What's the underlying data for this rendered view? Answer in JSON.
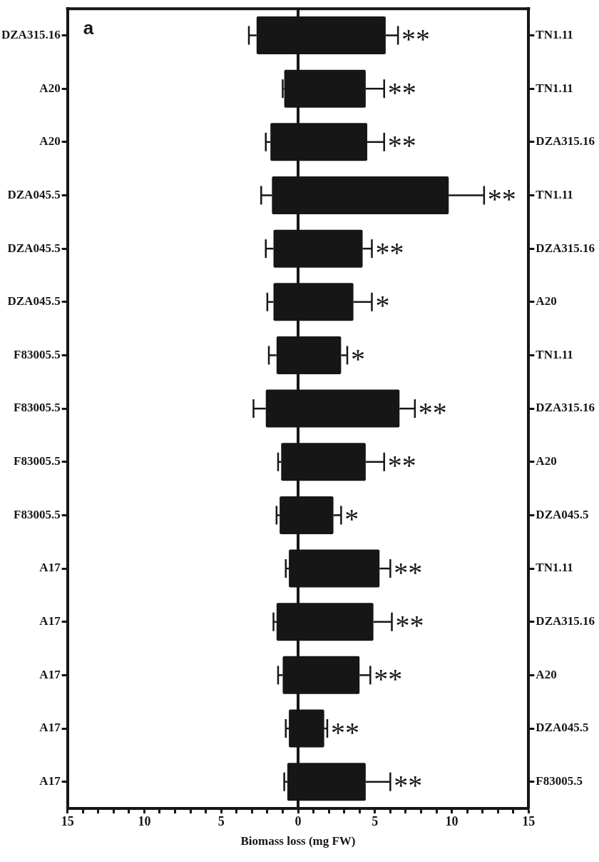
{
  "chart_data": {
    "type": "bar",
    "orientation": "horizontal",
    "stacked": true,
    "categories": [
      "DZA315.16",
      "A20",
      "A20",
      "DZA045.5",
      "DZA045.5",
      "DZA045.5",
      "F83005.5",
      "F83005.5",
      "F83005.5",
      "F83005.5",
      "A17",
      "A17",
      "A17",
      "A17",
      "A17"
    ],
    "y2_categories": [
      "TN1.11",
      "TN1.11",
      "DZA315.16",
      "TN1.11",
      "DZA315.16",
      "A20",
      "TN1.11",
      "DZA315.16",
      "A20",
      "DZA045.5",
      "TN1.11",
      "DZA315.16",
      "A20",
      "DZA045.5",
      "F83005.5"
    ],
    "series": [
      {
        "color": "#161616",
        "values": [
          -2.7,
          -0.9,
          -1.8,
          -1.7,
          -1.6,
          -1.6,
          -1.4,
          -2.1,
          -1.1,
          -1.2,
          -0.6,
          -1.4,
          -1.0,
          -0.6,
          -0.7
        ],
        "errors": [
          [
            -3.2,
            -2.7
          ],
          [
            -1.0,
            -0.9
          ],
          [
            -2.1,
            -1.8
          ],
          [
            -2.4,
            -1.7
          ],
          [
            -2.1,
            -1.6
          ],
          [
            -2.0,
            -1.6
          ],
          [
            -1.9,
            -1.4
          ],
          [
            -2.9,
            -2.1
          ],
          [
            -1.3,
            -1.1
          ],
          [
            -1.4,
            -1.2
          ],
          [
            -0.8,
            -0.6
          ],
          [
            -1.6,
            -1.4
          ],
          [
            -1.3,
            -1.0
          ],
          [
            -0.8,
            -0.6
          ],
          [
            -0.9,
            -0.7
          ]
        ]
      },
      {
        "color": "#161616",
        "values": [
          5.7,
          4.4,
          4.5,
          9.8,
          4.2,
          3.6,
          2.8,
          6.6,
          4.4,
          2.3,
          5.3,
          4.9,
          4.0,
          1.7,
          4.4
        ],
        "errors": [
          [
            5.7,
            6.5
          ],
          [
            4.4,
            5.6
          ],
          [
            4.5,
            5.6
          ],
          [
            9.8,
            12.1
          ],
          [
            4.2,
            4.8
          ],
          [
            3.6,
            4.8
          ],
          [
            2.8,
            3.2
          ],
          [
            6.6,
            7.6
          ],
          [
            4.4,
            5.6
          ],
          [
            2.3,
            2.8
          ],
          [
            5.3,
            6.0
          ],
          [
            4.9,
            6.1
          ],
          [
            4.0,
            4.7
          ],
          [
            1.7,
            1.9
          ],
          [
            4.4,
            6.0
          ]
        ]
      }
    ],
    "xlabel": "Biomass loss (mg FW)",
    "xlim": [
      -15,
      15
    ],
    "xticks": [
      {
        "value": -15,
        "label": "15"
      },
      {
        "value": -14,
        "label": null
      },
      {
        "value": -13,
        "label": null
      },
      {
        "value": -12,
        "label": null
      },
      {
        "value": -11,
        "label": null
      },
      {
        "value": -10,
        "label": "10"
      },
      {
        "value": -9,
        "label": null
      },
      {
        "value": -8,
        "label": null
      },
      {
        "value": -7,
        "label": null
      },
      {
        "value": -6,
        "label": null
      },
      {
        "value": -5,
        "label": "5"
      },
      {
        "value": -4,
        "label": null
      },
      {
        "value": -3,
        "label": null
      },
      {
        "value": -2,
        "label": null
      },
      {
        "value": -1,
        "label": null
      },
      0,
      {
        "value": 1,
        "label": null
      },
      {
        "value": 2,
        "label": null
      },
      {
        "value": 3,
        "label": null
      },
      {
        "value": 4,
        "label": null
      },
      5,
      {
        "value": 6,
        "label": null
      },
      {
        "value": 7,
        "label": null
      },
      {
        "value": 8,
        "label": null
      },
      {
        "value": 9,
        "label": null
      },
      10,
      {
        "value": 11,
        "label": null
      },
      {
        "value": 12,
        "label": null
      },
      {
        "value": 13,
        "label": null
      },
      {
        "value": 14,
        "label": null
      },
      15
    ],
    "ref_lines": [
      {
        "axis": "x",
        "value": 0,
        "color": "#161616"
      }
    ],
    "annotations": [
      "a",
      "**",
      "**",
      "**",
      "**",
      "**",
      "*",
      "*",
      "**",
      "**",
      "*",
      "**",
      "**",
      "**",
      "**",
      "**"
    ],
    "grid": false,
    "legend": false
  }
}
